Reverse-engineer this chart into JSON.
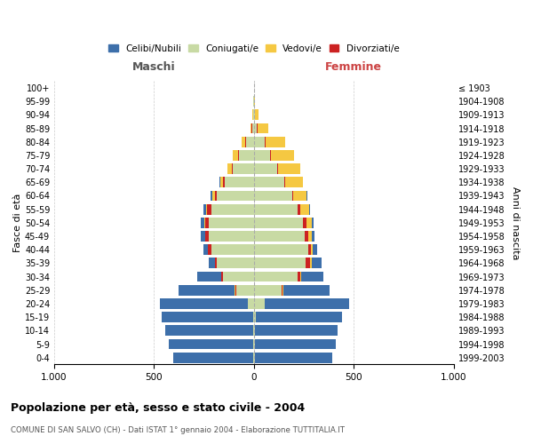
{
  "age_groups": [
    "0-4",
    "5-9",
    "10-14",
    "15-19",
    "20-24",
    "25-29",
    "30-34",
    "35-39",
    "40-44",
    "45-49",
    "50-54",
    "55-59",
    "60-64",
    "65-69",
    "70-74",
    "75-79",
    "80-84",
    "85-89",
    "90-94",
    "95-99",
    "100+"
  ],
  "birth_years": [
    "1999-2003",
    "1994-1998",
    "1989-1993",
    "1984-1988",
    "1979-1983",
    "1974-1978",
    "1969-1973",
    "1964-1968",
    "1959-1963",
    "1954-1958",
    "1949-1953",
    "1944-1948",
    "1939-1943",
    "1934-1938",
    "1929-1933",
    "1924-1928",
    "1919-1923",
    "1914-1918",
    "1909-1913",
    "1904-1908",
    "≤ 1903"
  ],
  "male": {
    "celibi": [
      400,
      420,
      440,
      455,
      440,
      280,
      120,
      30,
      20,
      20,
      20,
      15,
      10,
      5,
      0,
      0,
      0,
      0,
      0,
      0,
      0
    ],
    "coniugati": [
      5,
      5,
      5,
      5,
      30,
      90,
      155,
      185,
      215,
      225,
      225,
      215,
      185,
      145,
      105,
      75,
      40,
      10,
      5,
      2,
      0
    ],
    "vedovi": [
      0,
      0,
      0,
      0,
      0,
      2,
      2,
      2,
      2,
      2,
      3,
      5,
      10,
      15,
      25,
      30,
      20,
      5,
      2,
      0,
      0
    ],
    "divorziati": [
      0,
      0,
      0,
      0,
      0,
      5,
      8,
      10,
      15,
      18,
      20,
      18,
      12,
      8,
      5,
      3,
      3,
      2,
      0,
      0,
      0
    ]
  },
  "female": {
    "nubili": [
      385,
      405,
      415,
      430,
      420,
      230,
      110,
      50,
      20,
      15,
      10,
      5,
      5,
      0,
      0,
      0,
      0,
      0,
      0,
      0,
      0
    ],
    "coniugate": [
      5,
      5,
      5,
      10,
      55,
      140,
      220,
      260,
      270,
      255,
      245,
      220,
      190,
      150,
      115,
      80,
      55,
      15,
      5,
      2,
      0
    ],
    "vedove": [
      0,
      0,
      0,
      0,
      0,
      3,
      5,
      8,
      10,
      15,
      25,
      45,
      65,
      90,
      110,
      115,
      100,
      55,
      20,
      5,
      0
    ],
    "divorziate": [
      0,
      0,
      0,
      0,
      0,
      5,
      12,
      20,
      15,
      18,
      20,
      10,
      8,
      5,
      5,
      5,
      3,
      2,
      0,
      0,
      0
    ]
  },
  "colors": {
    "celibi": "#3d6faa",
    "coniugati": "#c8daa4",
    "vedovi": "#f5c842",
    "divorziati": "#cc2222"
  },
  "title": "Popolazione per età, sesso e stato civile - 2004",
  "subtitle": "COMUNE DI SAN SALVO (CH) - Dati ISTAT 1° gennaio 2004 - Elaborazione TUTTITALIA.IT",
  "xlabel_left": "Maschi",
  "xlabel_right": "Femmine",
  "ylabel_left": "Fasce di età",
  "ylabel_right": "Anni di nascita",
  "xlim": 1000,
  "bg_color": "#ffffff",
  "grid_color": "#cccccc"
}
